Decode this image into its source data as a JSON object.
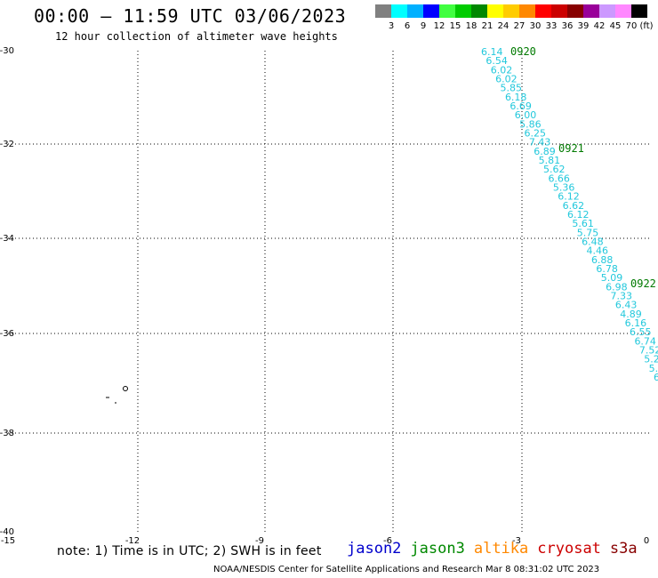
{
  "header": {
    "title": "00:00 – 11:59 UTC 03/06/2023",
    "subtitle": "12 hour collection of altimeter wave heights"
  },
  "legend": {
    "unit": "(ft)",
    "items": [
      {
        "label": "3",
        "color": "#808080"
      },
      {
        "label": "6",
        "color": "#00ffff"
      },
      {
        "label": "9",
        "color": "#00b0ff"
      },
      {
        "label": "12",
        "color": "#0000ff"
      },
      {
        "label": "15",
        "color": "#40ff40"
      },
      {
        "label": "18",
        "color": "#00cc00"
      },
      {
        "label": "21",
        "color": "#008800"
      },
      {
        "label": "24",
        "color": "#ffff00"
      },
      {
        "label": "27",
        "color": "#ffcc00"
      },
      {
        "label": "30",
        "color": "#ff8800"
      },
      {
        "label": "33",
        "color": "#ff0000"
      },
      {
        "label": "36",
        "color": "#cc0000"
      },
      {
        "label": "39",
        "color": "#880000"
      },
      {
        "label": "42",
        "color": "#990099"
      },
      {
        "label": "45",
        "color": "#cc99ff"
      },
      {
        "label": "70",
        "color": "#ff88ff"
      },
      {
        "label": "",
        "color": "#000000"
      }
    ]
  },
  "map": {
    "lon_range": [
      -15,
      0
    ],
    "lat_range": [
      -40,
      -30
    ],
    "lat_ticks": [
      "-30",
      "-32",
      "-34",
      "-36",
      "-38",
      "-40"
    ],
    "lon_ticks": [
      "-15",
      "-12",
      "-9",
      "-6",
      "-3",
      "0"
    ],
    "grid": "dotted",
    "track_color": "#22c8dc",
    "time_color": "#007a00",
    "wave_heights": [
      "6.14",
      "6.54",
      "6.02",
      "6.02",
      "5.85",
      "6.18",
      "6.69",
      "6.00",
      "5.86",
      "6.25",
      "7.43",
      "6.89",
      "5.81",
      "5.62",
      "6.66",
      "5.36",
      "6.12",
      "6.62",
      "6.12",
      "5.61",
      "5.75",
      "6.48",
      "4.46",
      "6.88",
      "6.78",
      "5.09",
      "6.98",
      "7.33",
      "6.43",
      "4.89",
      "6.16",
      "6.55",
      "6.74",
      "7.52",
      "5.2",
      "5.",
      "6"
    ],
    "time_labels": [
      "0920",
      "0921",
      "0922"
    ]
  },
  "footer": {
    "note": "note: 1) Time is in UTC; 2) SWH is in feet",
    "satellites": [
      {
        "name": "jason2",
        "color": "#0000cc"
      },
      {
        "name": "jason3",
        "color": "#008800"
      },
      {
        "name": "altika",
        "color": "#ff8800"
      },
      {
        "name": "cryosat",
        "color": "#cc0000"
      },
      {
        "name": "s3a",
        "color": "#880000"
      }
    ],
    "credit": "NOAA/NESDIS Center for Satellite Applications and Research    Mar  8 08:31:02 UTC 2023"
  }
}
